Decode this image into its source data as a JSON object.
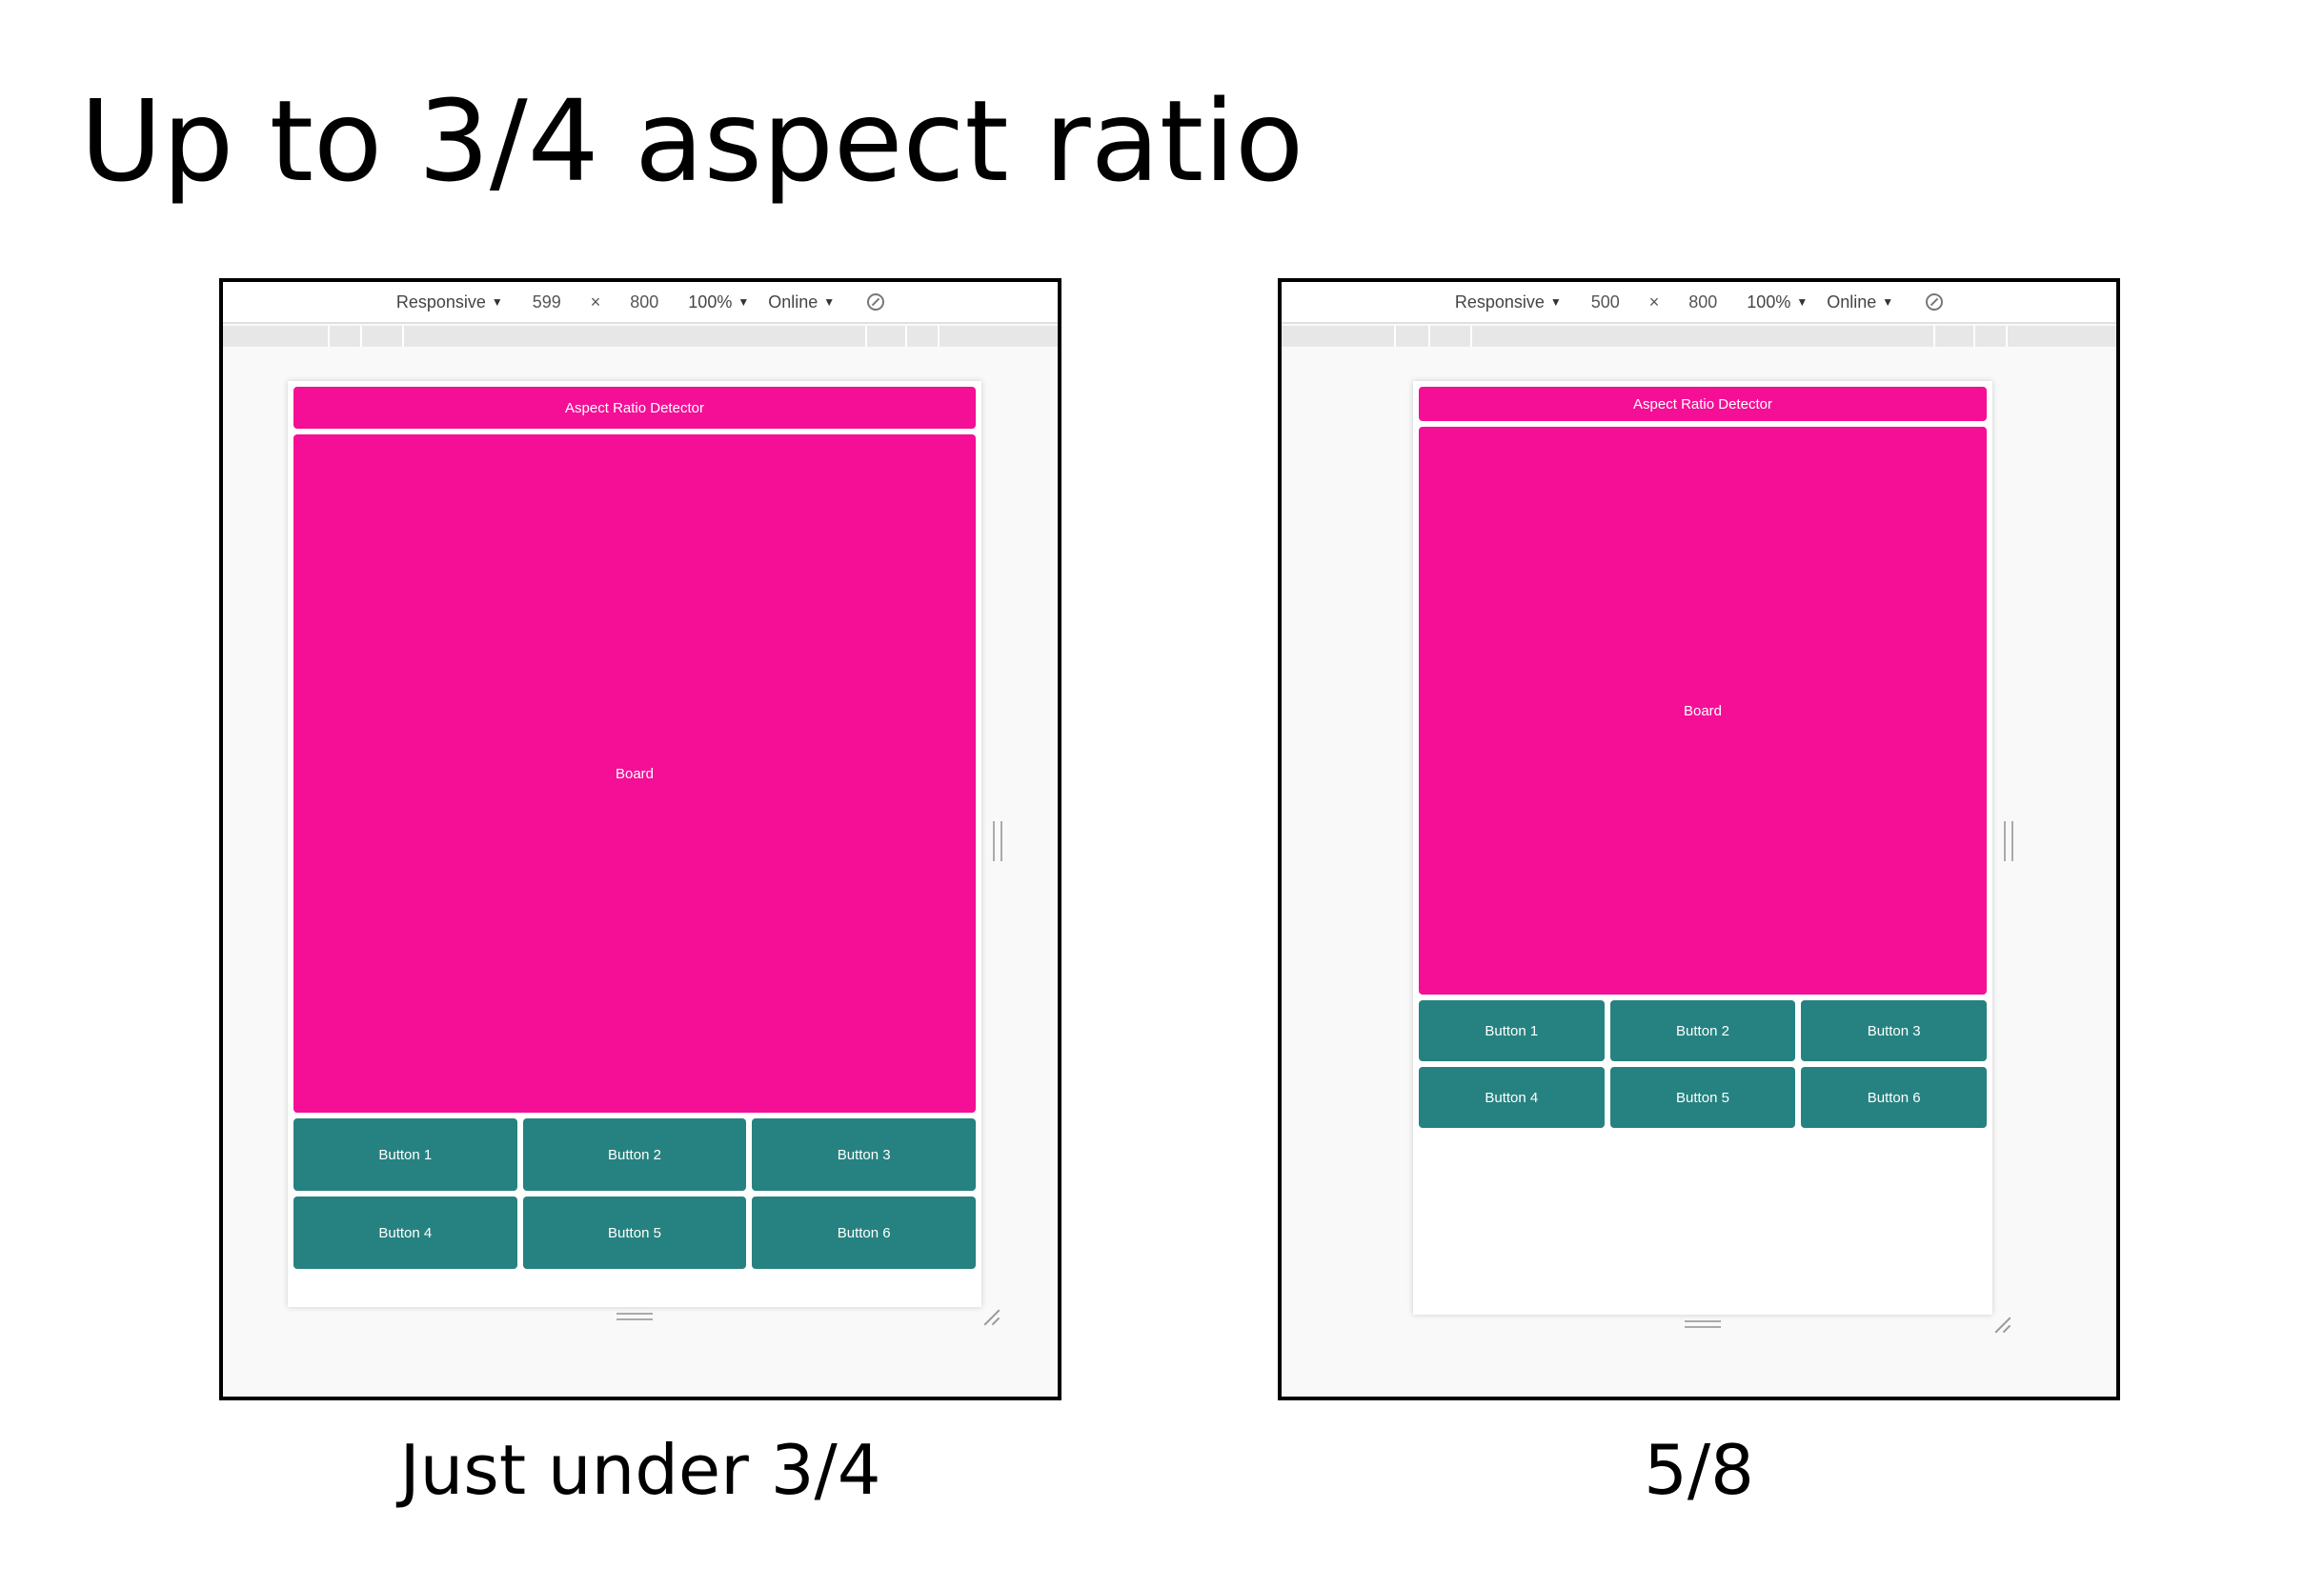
{
  "page": {
    "title": "Up to 3/4 aspect ratio"
  },
  "panels": [
    {
      "caption": "Just under 3/4",
      "toolbar": {
        "device": "Responsive",
        "width": "599",
        "times": "×",
        "height": "800",
        "zoom": "100%",
        "network": "Online"
      },
      "app": {
        "header": "Aspect Ratio Detector",
        "board": "Board",
        "buttons": [
          "Button 1",
          "Button 2",
          "Button 3",
          "Button 4",
          "Button 5",
          "Button 6"
        ]
      },
      "colors": {
        "header": "#f40f96",
        "board": "#f40f96",
        "button": "#268280"
      },
      "icons": {
        "rotate": "rotate-icon",
        "caret": "caret-down-icon"
      }
    },
    {
      "caption": "5/8",
      "toolbar": {
        "device": "Responsive",
        "width": "500",
        "times": "×",
        "height": "800",
        "zoom": "100%",
        "network": "Online"
      },
      "app": {
        "header": "Aspect Ratio Detector",
        "board": "Board",
        "buttons": [
          "Button 1",
          "Button 2",
          "Button 3",
          "Button 4",
          "Button 5",
          "Button 6"
        ]
      },
      "colors": {
        "header": "#f40f96",
        "board": "#f40f96",
        "button": "#268280"
      },
      "icons": {
        "rotate": "rotate-icon",
        "caret": "caret-down-icon"
      }
    }
  ]
}
